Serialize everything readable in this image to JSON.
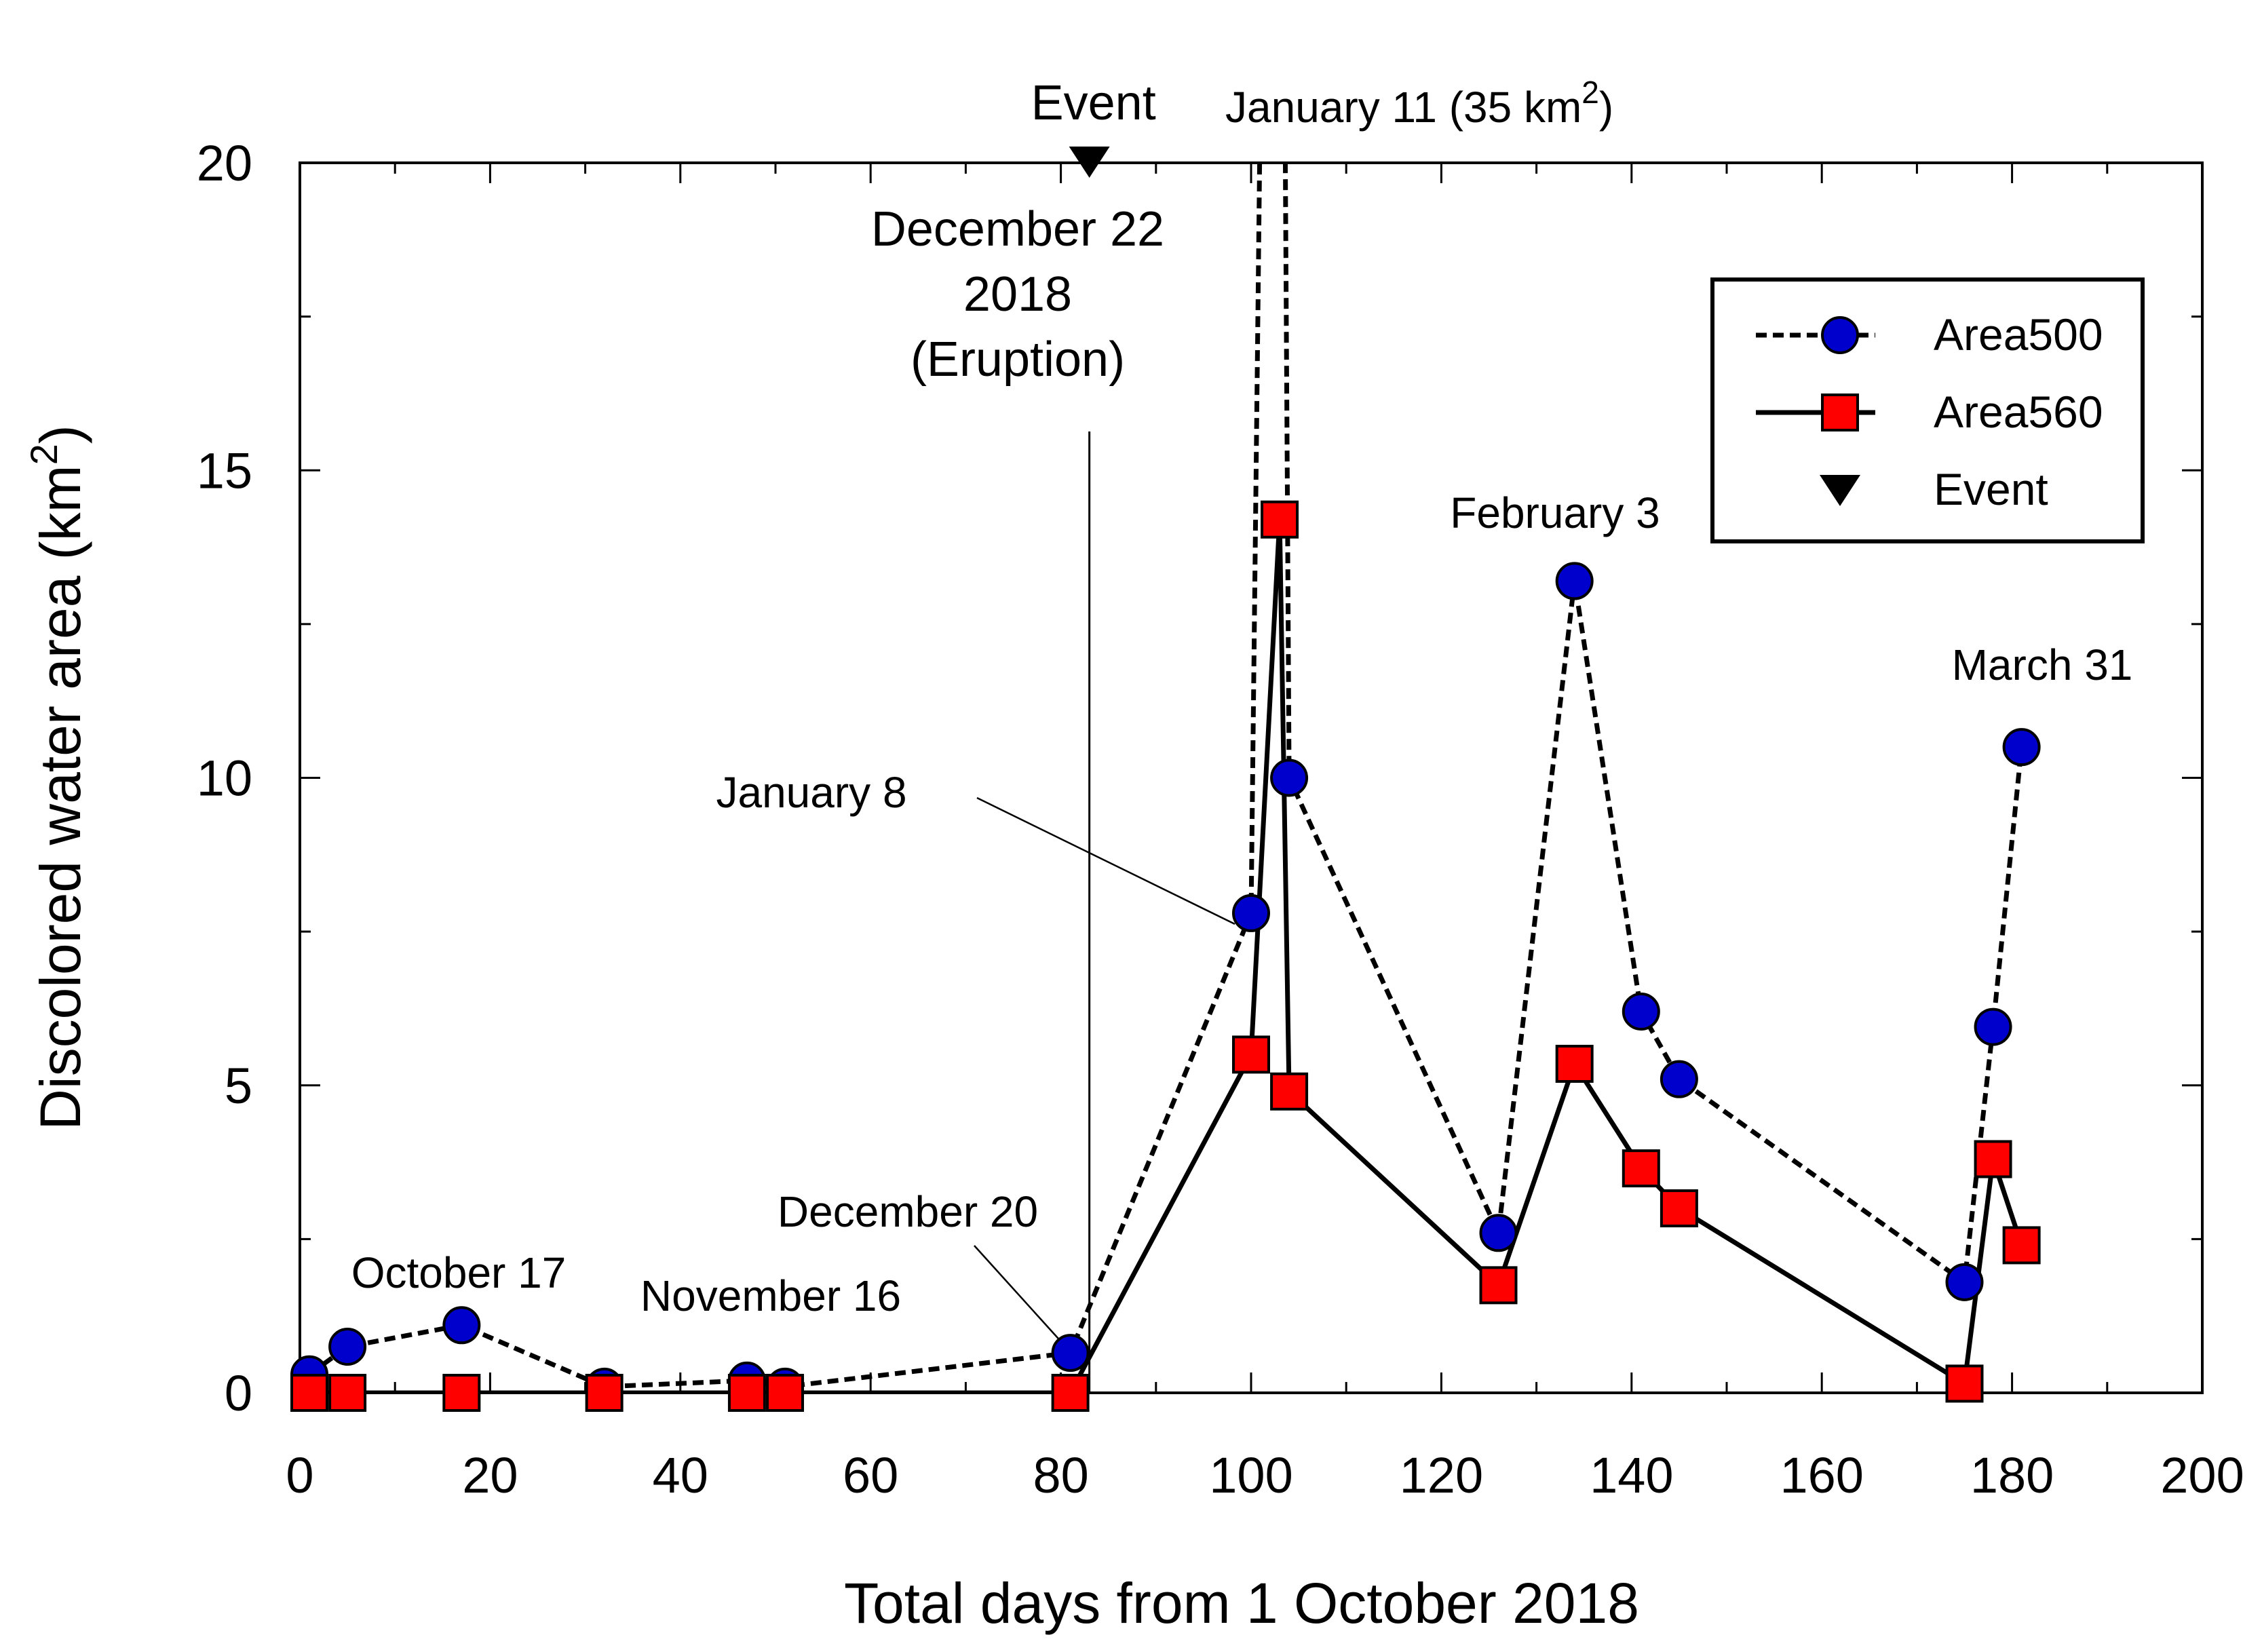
{
  "chart_data": {
    "type": "line",
    "xlabel": "Total days from 1 October 2018",
    "ylabel": "Discolored water area (km",
    "ylabel_sup": "2",
    "ylabel_close": ")",
    "xlim": [
      0,
      200
    ],
    "ylim": [
      0,
      20
    ],
    "xticks": [
      0,
      20,
      40,
      60,
      80,
      100,
      120,
      140,
      160,
      180,
      200
    ],
    "yticks": [
      0,
      5,
      10,
      15,
      20
    ],
    "grid": false,
    "legend_position": "top-right",
    "series": [
      {
        "name": "Area500",
        "style": "dashed",
        "marker": "circle",
        "color": "#0000cc",
        "x": [
          1,
          5,
          17,
          32,
          47,
          51,
          81,
          100,
          102,
          103,
          104,
          126,
          134,
          141,
          145,
          175,
          178,
          181
        ],
        "y": [
          0.3,
          0.75,
          1.1,
          0.1,
          0.2,
          0.1,
          0.65,
          7.8,
          35,
          35,
          10,
          2.6,
          13.2,
          6.2,
          5.1,
          1.8,
          5.95,
          10.5
        ]
      },
      {
        "name": "Area560",
        "style": "solid",
        "marker": "square",
        "color": "#ff0000",
        "x": [
          1,
          5,
          17,
          32,
          47,
          51,
          81,
          100,
          103,
          104,
          126,
          134,
          141,
          145,
          175,
          178,
          181
        ],
        "y": [
          0,
          0,
          0,
          0,
          0,
          0,
          0,
          5.5,
          14.2,
          4.9,
          1.75,
          5.35,
          3.65,
          3.0,
          0.15,
          3.8,
          2.4
        ]
      }
    ],
    "event": {
      "name": "Event",
      "x": 83,
      "label": "Event"
    },
    "legend": {
      "area500": "Area500",
      "area560": "Area560",
      "event": "Event"
    },
    "annotations": {
      "oct17": "October 17",
      "nov16": "November 16",
      "dec20": "December 20",
      "jan8": "January 8",
      "jan11": "January 11 (35 km",
      "jan11_sup": "2",
      "jan11_close": ")",
      "dec22_line1": "December 22",
      "dec22_line2": "2018",
      "dec22_line3": "(Eruption)",
      "feb3": "February 3",
      "mar31": "March 31"
    }
  }
}
